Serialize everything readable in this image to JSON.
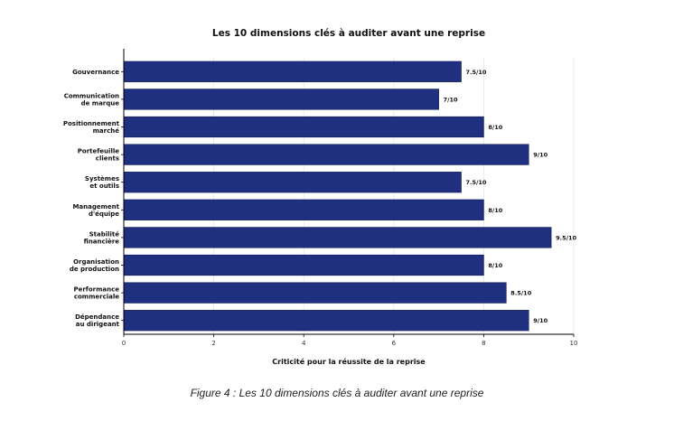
{
  "caption": "Figure 4 : Les 10 dimensions clés à auditer avant une reprise",
  "chart_data": {
    "type": "bar",
    "orientation": "horizontal",
    "title": "Les 10 dimensions clés à auditer avant une reprise",
    "xlabel": "Criticité pour la réussite de la reprise",
    "ylabel": "",
    "xlim": [
      0,
      10
    ],
    "xticks": [
      0,
      2,
      4,
      6,
      8,
      10
    ],
    "grid": true,
    "bar_color": "#1f3080",
    "categories": [
      [
        "Gouvernance"
      ],
      [
        "Communication",
        "de marque"
      ],
      [
        "Positionnement",
        "marché"
      ],
      [
        "Portefeuille",
        "clients"
      ],
      [
        "Systèmes",
        "et outils"
      ],
      [
        "Management",
        "d'équipe"
      ],
      [
        "Stabilité",
        "financière"
      ],
      [
        "Organisation",
        "de production"
      ],
      [
        "Performance",
        "commerciale"
      ],
      [
        "Dépendance",
        "au dirigeant"
      ]
    ],
    "values": [
      7.5,
      7,
      8,
      9,
      7.5,
      8,
      9.5,
      8,
      8.5,
      9
    ],
    "data_labels": [
      "7.5/10",
      "7/10",
      "8/10",
      "9/10",
      "7.5/10",
      "8/10",
      "9.5/10",
      "8/10",
      "8.5/10",
      "9/10"
    ]
  }
}
